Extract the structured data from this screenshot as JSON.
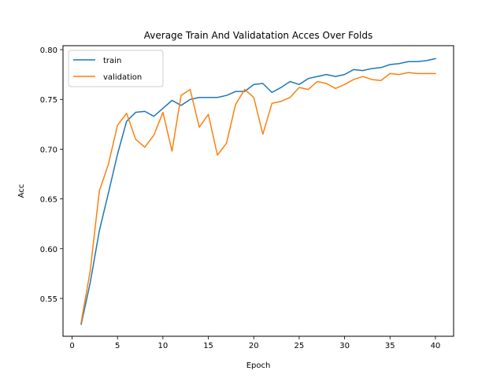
{
  "chart_data": {
    "type": "line",
    "title": "Average Train And Validatation Acces Over Folds",
    "xlabel": "Epoch",
    "ylabel": "Acc",
    "xlim": [
      -1,
      42
    ],
    "ylim": [
      0.512,
      0.804
    ],
    "xticks": [
      0,
      5,
      10,
      15,
      20,
      25,
      30,
      35,
      40
    ],
    "yticks": [
      0.55,
      0.6,
      0.65,
      0.7,
      0.75,
      0.8
    ],
    "ytick_labels": [
      "0.55",
      "0.60",
      "0.65",
      "0.70",
      "0.75",
      "0.80"
    ],
    "grid": false,
    "legend": "top-left",
    "x": [
      1,
      2,
      3,
      4,
      5,
      6,
      7,
      8,
      9,
      10,
      11,
      12,
      13,
      14,
      15,
      16,
      17,
      18,
      19,
      20,
      21,
      22,
      23,
      24,
      25,
      26,
      27,
      28,
      29,
      30,
      31,
      32,
      33,
      34,
      35,
      36,
      37,
      38,
      39,
      40
    ],
    "series": [
      {
        "name": "train",
        "color": "#1f77b4",
        "values": [
          0.524,
          0.566,
          0.618,
          0.656,
          0.695,
          0.728,
          0.737,
          0.738,
          0.733,
          0.741,
          0.749,
          0.744,
          0.75,
          0.752,
          0.752,
          0.752,
          0.754,
          0.758,
          0.758,
          0.765,
          0.766,
          0.757,
          0.762,
          0.768,
          0.765,
          0.771,
          0.773,
          0.775,
          0.773,
          0.775,
          0.78,
          0.779,
          0.781,
          0.782,
          0.785,
          0.786,
          0.788,
          0.788,
          0.789,
          0.791
        ]
      },
      {
        "name": "validation",
        "color": "#ff7f0e",
        "values": [
          0.526,
          0.578,
          0.658,
          0.685,
          0.724,
          0.736,
          0.71,
          0.702,
          0.714,
          0.737,
          0.698,
          0.754,
          0.76,
          0.722,
          0.735,
          0.694,
          0.706,
          0.745,
          0.76,
          0.752,
          0.715,
          0.746,
          0.748,
          0.752,
          0.762,
          0.76,
          0.768,
          0.766,
          0.761,
          0.765,
          0.77,
          0.773,
          0.77,
          0.769,
          0.776,
          0.775,
          0.777,
          0.776,
          0.776,
          0.776
        ]
      }
    ]
  }
}
